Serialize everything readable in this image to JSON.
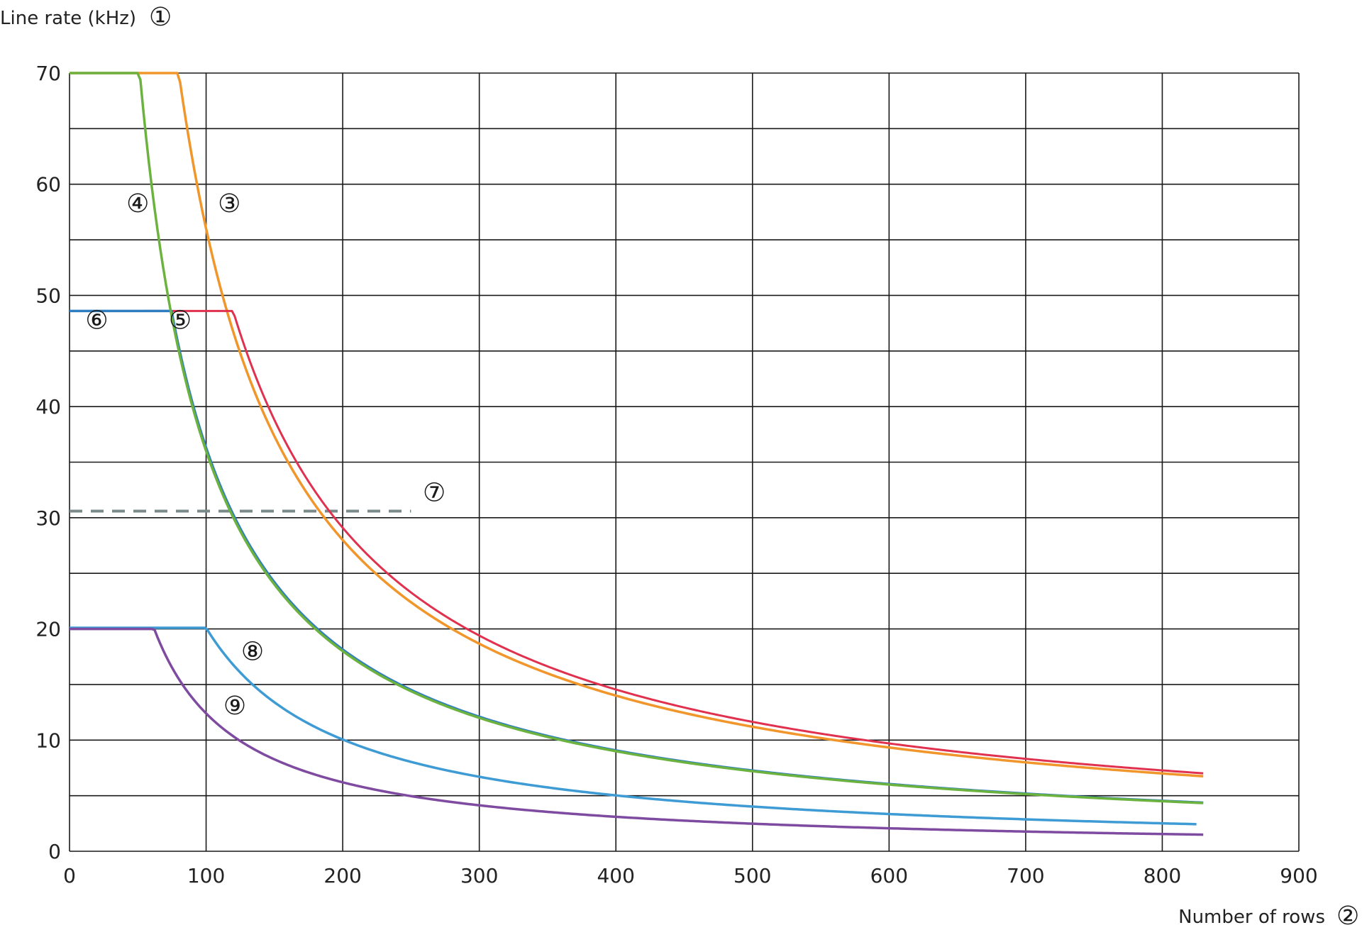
{
  "chart_data": {
    "type": "line",
    "ylabel": "Line rate (kHz)",
    "ylabel_marker": "①",
    "xlabel": "Number of rows",
    "xlabel_marker": "②",
    "xlim": [
      0,
      900
    ],
    "ylim": [
      0,
      70
    ],
    "x_ticks": [
      0,
      100,
      200,
      300,
      400,
      500,
      600,
      700,
      800,
      900
    ],
    "y_ticks": [
      0,
      10,
      20,
      30,
      40,
      50,
      60,
      70
    ],
    "x_minor_step": 100,
    "y_minor_step": 5,
    "grid": true,
    "series": [
      {
        "name": "③",
        "color": "#f0962a",
        "width": 3.5,
        "curve": {
          "plateau": 70,
          "k": 5600,
          "x0": 0,
          "x1": 830
        },
        "label_at": [
          117,
          57.5
        ]
      },
      {
        "name": "⑤",
        "color": "#e0314f",
        "width": 3,
        "curve": {
          "plateau": 48.6,
          "k": 5820,
          "x0": 55,
          "x1": 830
        },
        "label_at": [
          81,
          47
        ]
      },
      {
        "name": "⑥",
        "color": "#2e7dc0",
        "width": 3.5,
        "curve": {
          "plateau": 48.6,
          "k": 3630,
          "x0": 0,
          "x1": 830
        },
        "label_at": [
          20,
          47
        ]
      },
      {
        "name": "④",
        "color": "#6cb23f",
        "width": 3.5,
        "curve": {
          "plateau": 70,
          "k": 3600,
          "x0": 0,
          "x1": 830
        },
        "label_at": [
          50,
          57.5
        ]
      },
      {
        "name": "⑧",
        "color": "#3e9bd4",
        "width": 3.5,
        "curve": {
          "plateau": 20.1,
          "k": 2010,
          "x0": 0,
          "x1": 825
        },
        "label_at": [
          134,
          17.2
        ]
      },
      {
        "name": "⑨",
        "color": "#7f4ba0",
        "width": 3.5,
        "curve": {
          "plateau": 20,
          "k": 1240,
          "x0": 0,
          "x1": 830
        },
        "label_at": [
          121,
          12.3
        ]
      }
    ],
    "reference_line": {
      "name": "⑦",
      "color": "#7a8a8a",
      "y": 30.6,
      "x": [
        0,
        250
      ],
      "dashed": true,
      "label_at": [
        267,
        31.5
      ]
    }
  }
}
